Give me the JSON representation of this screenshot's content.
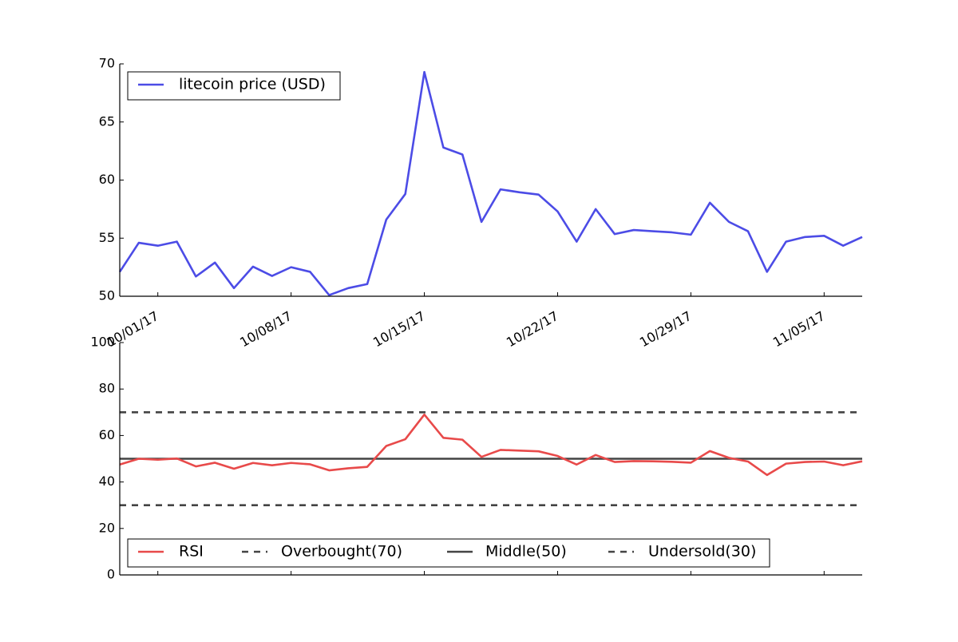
{
  "chart_data": [
    {
      "type": "line",
      "series": [
        {
          "name": "litecoin price (USD)",
          "color": "#4c4ce6",
          "points": [
            [
              "2017-09-29",
              52.1
            ],
            [
              "2017-09-30",
              54.6
            ],
            [
              "2017-10-01",
              54.35
            ],
            [
              "2017-10-02",
              54.7
            ],
            [
              "2017-10-03",
              51.7
            ],
            [
              "2017-10-04",
              52.9
            ],
            [
              "2017-10-05",
              50.7
            ],
            [
              "2017-10-06",
              52.55
            ],
            [
              "2017-10-07",
              51.75
            ],
            [
              "2017-10-08",
              52.5
            ],
            [
              "2017-10-09",
              52.1
            ],
            [
              "2017-10-10",
              50.1
            ],
            [
              "2017-10-11",
              50.7
            ],
            [
              "2017-10-12",
              51.05
            ],
            [
              "2017-10-13",
              56.6
            ],
            [
              "2017-10-14",
              58.8
            ],
            [
              "2017-10-15",
              69.3
            ],
            [
              "2017-10-16",
              62.8
            ],
            [
              "2017-10-17",
              62.2
            ],
            [
              "2017-10-18",
              56.4
            ],
            [
              "2017-10-19",
              59.2
            ],
            [
              "2017-10-20",
              58.95
            ],
            [
              "2017-10-21",
              58.75
            ],
            [
              "2017-10-22",
              57.3
            ],
            [
              "2017-10-23",
              54.7
            ],
            [
              "2017-10-24",
              57.5
            ],
            [
              "2017-10-25",
              55.35
            ],
            [
              "2017-10-26",
              55.7
            ],
            [
              "2017-10-27",
              55.6
            ],
            [
              "2017-10-28",
              55.5
            ],
            [
              "2017-10-29",
              55.3
            ],
            [
              "2017-10-30",
              58.05
            ],
            [
              "2017-10-31",
              56.4
            ],
            [
              "2017-11-01",
              55.6
            ],
            [
              "2017-11-02",
              52.1
            ],
            [
              "2017-11-03",
              54.7
            ],
            [
              "2017-11-04",
              55.1
            ],
            [
              "2017-11-05",
              55.2
            ],
            [
              "2017-11-06",
              54.35
            ],
            [
              "2017-11-07",
              55.1
            ]
          ]
        }
      ],
      "x_range": [
        "2017-09-29",
        "2017-11-07"
      ],
      "x_ticks": [
        "2017-10-01",
        "2017-10-08",
        "2017-10-15",
        "2017-10-22",
        "2017-10-29",
        "2017-11-05"
      ],
      "x_tick_labels": [
        "10/01/17",
        "10/08/17",
        "10/15/17",
        "10/22/17",
        "10/29/17",
        "11/05/17"
      ],
      "ylim": [
        50,
        70
      ],
      "y_ticks": [
        50,
        55,
        60,
        65,
        70
      ],
      "y_tick_labels": [
        "50",
        "55",
        "60",
        "65",
        "70"
      ],
      "legend_location": "upper left",
      "grid": false
    },
    {
      "type": "line",
      "series": [
        {
          "name": "RSI",
          "color": "#e84a4a",
          "points": [
            [
              "2017-09-29",
              47.5
            ],
            [
              "2017-09-30",
              50
            ],
            [
              "2017-10-01",
              49.6
            ],
            [
              "2017-10-02",
              50.1
            ],
            [
              "2017-10-03",
              46.7
            ],
            [
              "2017-10-04",
              48.3
            ],
            [
              "2017-10-05",
              45.7
            ],
            [
              "2017-10-06",
              48.2
            ],
            [
              "2017-10-07",
              47.2
            ],
            [
              "2017-10-08",
              48.2
            ],
            [
              "2017-10-09",
              47.6
            ],
            [
              "2017-10-10",
              45
            ],
            [
              "2017-10-11",
              45.9
            ],
            [
              "2017-10-12",
              46.5
            ],
            [
              "2017-10-13",
              55.5
            ],
            [
              "2017-10-14",
              58.4
            ],
            [
              "2017-10-15",
              69
            ],
            [
              "2017-10-16",
              59
            ],
            [
              "2017-10-17",
              58.2
            ],
            [
              "2017-10-18",
              50.8
            ],
            [
              "2017-10-19",
              53.8
            ],
            [
              "2017-10-20",
              53.5
            ],
            [
              "2017-10-21",
              53.2
            ],
            [
              "2017-10-22",
              51.2
            ],
            [
              "2017-10-23",
              47.5
            ],
            [
              "2017-10-24",
              51.6
            ],
            [
              "2017-10-25",
              48.6
            ],
            [
              "2017-10-26",
              49
            ],
            [
              "2017-10-27",
              48.9
            ],
            [
              "2017-10-28",
              48.7
            ],
            [
              "2017-10-29",
              48.3
            ],
            [
              "2017-10-30",
              53.3
            ],
            [
              "2017-10-31",
              50.4
            ],
            [
              "2017-11-01",
              48.8
            ],
            [
              "2017-11-02",
              43
            ],
            [
              "2017-11-03",
              47.9
            ],
            [
              "2017-11-04",
              48.6
            ],
            [
              "2017-11-05",
              48.8
            ],
            [
              "2017-11-06",
              47.2
            ],
            [
              "2017-11-07",
              48.9
            ]
          ]
        },
        {
          "name": "Overbought(70)",
          "color": "#444444",
          "linestyle": "dashed",
          "value": 70
        },
        {
          "name": "Middle(50)",
          "color": "#444444",
          "linestyle": "solid",
          "value": 50
        },
        {
          "name": "Undersold(30)",
          "color": "#444444",
          "linestyle": "dashed",
          "value": 30
        }
      ],
      "x_range": [
        "2017-09-29",
        "2017-11-07"
      ],
      "ylim": [
        0,
        100
      ],
      "y_ticks": [
        0,
        20,
        40,
        60,
        80,
        100
      ],
      "y_tick_labels": [
        "0",
        "20",
        "40",
        "60",
        "80",
        "100"
      ],
      "x_tick_labels_shown": false,
      "legend_location": "lower left",
      "legend_columns": 4,
      "grid": false
    }
  ]
}
